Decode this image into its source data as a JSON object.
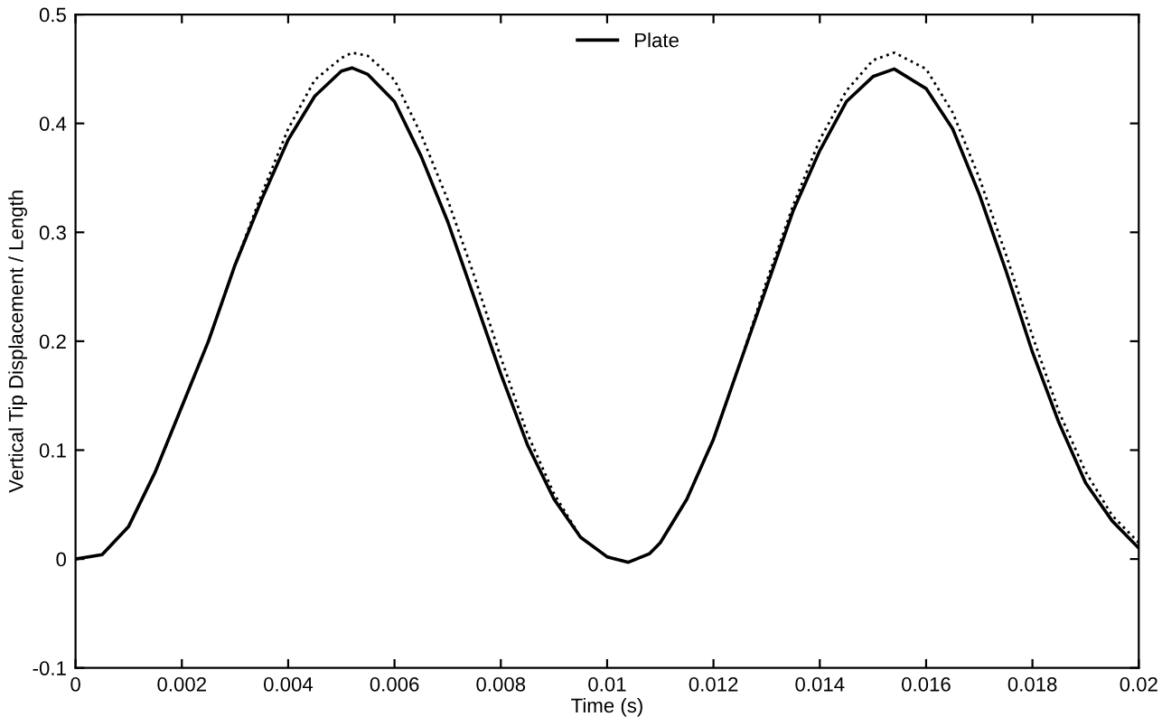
{
  "chart_data": {
    "type": "line",
    "xlabel": "Time (s)",
    "ylabel": "Vertical Tip Displacement / Length",
    "x": [
      0,
      0.0005,
      0.001,
      0.0015,
      0.002,
      0.0025,
      0.003,
      0.0035,
      0.004,
      0.0045,
      0.005,
      0.0052,
      0.0055,
      0.006,
      0.0065,
      0.007,
      0.0075,
      0.008,
      0.0085,
      0.009,
      0.0095,
      0.01,
      0.0104,
      0.0108,
      0.011,
      0.0115,
      0.012,
      0.0125,
      0.013,
      0.0135,
      0.014,
      0.0145,
      0.015,
      0.0154,
      0.016,
      0.0165,
      0.017,
      0.0175,
      0.018,
      0.0185,
      0.019,
      0.0195,
      0.02
    ],
    "series": [
      {
        "color": "#000000",
        "line_style": "dotted",
        "values": [
          0,
          0.004,
          0.03,
          0.08,
          0.14,
          0.2,
          0.27,
          0.335,
          0.395,
          0.44,
          0.46,
          0.465,
          0.462,
          0.44,
          0.39,
          0.33,
          0.26,
          0.185,
          0.115,
          0.06,
          0.02,
          0.002,
          -0.003,
          0.005,
          0.015,
          0.055,
          0.11,
          0.18,
          0.255,
          0.325,
          0.385,
          0.43,
          0.458,
          0.465,
          0.45,
          0.41,
          0.35,
          0.28,
          0.205,
          0.135,
          0.08,
          0.04,
          0.015
        ]
      },
      {
        "name": "Plate",
        "color": "#000000",
        "line_style": "solid",
        "values": [
          0,
          0.004,
          0.03,
          0.08,
          0.14,
          0.2,
          0.27,
          0.33,
          0.385,
          0.425,
          0.448,
          0.451,
          0.445,
          0.42,
          0.37,
          0.31,
          0.24,
          0.17,
          0.105,
          0.055,
          0.02,
          0.002,
          -0.003,
          0.005,
          0.015,
          0.055,
          0.11,
          0.18,
          0.25,
          0.32,
          0.375,
          0.42,
          0.443,
          0.45,
          0.432,
          0.395,
          0.335,
          0.265,
          0.19,
          0.125,
          0.07,
          0.035,
          0.01
        ]
      }
    ],
    "xlim": [
      0,
      0.02
    ],
    "xticks": [
      0,
      0.002,
      0.004,
      0.006,
      0.008,
      0.01,
      0.012,
      0.014,
      0.016,
      0.018,
      0.02
    ],
    "ylim": [
      -0.1,
      0.5
    ],
    "yticks": [
      -0.1,
      0,
      0.1,
      0.2,
      0.3,
      0.4,
      0.5
    ],
    "grid": false,
    "legend": "top",
    "marker": "none"
  }
}
